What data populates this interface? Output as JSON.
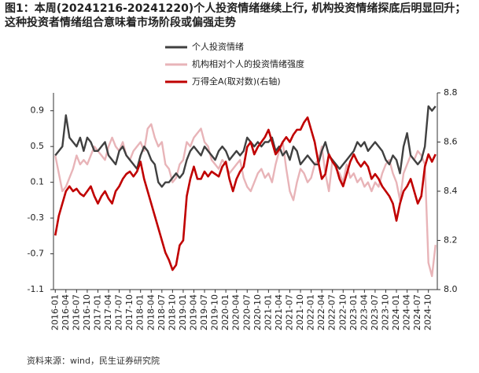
{
  "chart_data": {
    "type": "line",
    "title": "图1：本周(20241216-20241220)个人投资情绪继续上行, 机构投资情绪探底后明显回升；这种投资者情绪组合意味着市场阶段或偏强走势",
    "source": "资料来源：wind，民生证券研究院",
    "legend": "top",
    "categories": [
      "2016-01",
      null,
      null,
      "2016-04",
      null,
      null,
      "2016-07",
      null,
      null,
      "2016-10",
      null,
      null,
      "2017-01",
      null,
      null,
      "2017-04",
      null,
      null,
      "2017-07",
      null,
      null,
      "2017-10",
      null,
      null,
      "2018-01",
      null,
      null,
      "2018-04",
      null,
      null,
      "2018-07",
      null,
      null,
      "2018-10",
      null,
      null,
      "2019-01",
      null,
      null,
      "2019-04",
      null,
      null,
      "2019-07",
      null,
      null,
      "2019-10",
      null,
      null,
      "2020-01",
      null,
      null,
      "2020-04",
      null,
      null,
      "2020-07",
      null,
      null,
      "2020-10",
      null,
      null,
      "2021-01",
      null,
      null,
      "2021-04",
      null,
      null,
      "2021-07",
      null,
      null,
      "2021-10",
      null,
      null,
      "2022-01",
      null,
      null,
      "2022-04",
      null,
      null,
      "2022-07",
      null,
      null,
      "2022-10",
      null,
      null,
      "2023-01",
      null,
      null,
      "2023-04",
      null,
      null,
      "2023-07",
      null,
      null,
      "2023-10",
      null,
      null,
      "2024-01",
      null,
      null,
      "2024-04",
      null,
      null,
      "2024-07",
      null,
      null,
      "2024-10",
      null,
      null
    ],
    "ylim": [
      -1.1,
      1.1
    ],
    "yticks": [
      0.9,
      0.5,
      0.1,
      -0.3,
      -0.7,
      -1.1
    ],
    "y2lim": [
      8.0,
      8.8
    ],
    "y2ticks": [
      8.8,
      8.6,
      8.4,
      8.2,
      {
        "value": 8,
        "label": "8.0"
      }
    ],
    "series": [
      {
        "name": "个人投资情绪",
        "color": "#404040",
        "values": [
          0.4,
          0.45,
          0.5,
          0.85,
          0.6,
          0.55,
          0.5,
          0.6,
          0.45,
          0.6,
          0.55,
          0.45,
          0.45,
          0.5,
          0.55,
          0.4,
          0.35,
          0.3,
          0.45,
          0.5,
          0.4,
          0.35,
          0.3,
          0.25,
          0.4,
          0.5,
          0.45,
          0.35,
          0.3,
          0.1,
          0.05,
          0.1,
          0.1,
          0.15,
          0.2,
          0.15,
          0.2,
          0.35,
          0.45,
          0.5,
          0.45,
          0.4,
          0.5,
          0.45,
          0.4,
          0.35,
          0.45,
          0.5,
          0.45,
          0.35,
          0.4,
          0.45,
          0.4,
          0.45,
          0.6,
          0.55,
          0.5,
          0.55,
          0.5,
          0.55,
          0.55,
          0.6,
          0.45,
          0.5,
          0.4,
          0.45,
          0.35,
          0.5,
          0.45,
          0.3,
          0.35,
          0.4,
          0.35,
          0.3,
          0.3,
          0.45,
          0.55,
          0.4,
          0.35,
          0.3,
          0.25,
          0.3,
          0.35,
          0.4,
          0.45,
          0.55,
          0.5,
          0.55,
          0.45,
          0.5,
          0.55,
          0.5,
          0.45,
          0.35,
          0.3,
          0.4,
          0.35,
          0.2,
          0.5,
          0.65,
          0.4,
          0.35,
          0.3,
          0.35,
          0.5,
          0.95,
          0.9,
          0.95
        ]
      },
      {
        "name": "机构相对个人的投资情绪强度",
        "color": "#e8b4b8",
        "values": [
          0.4,
          0.2,
          0.0,
          0.05,
          0.15,
          0.25,
          0.4,
          0.3,
          0.35,
          0.3,
          0.4,
          0.5,
          0.45,
          0.4,
          0.35,
          0.5,
          0.6,
          0.5,
          0.45,
          0.55,
          0.4,
          0.35,
          0.45,
          0.5,
          0.55,
          0.45,
          0.7,
          0.75,
          0.6,
          0.5,
          0.55,
          0.3,
          0.25,
          0.1,
          0.15,
          0.3,
          0.35,
          0.55,
          0.5,
          0.6,
          0.65,
          0.7,
          0.55,
          0.5,
          0.35,
          0.3,
          0.25,
          0.35,
          0.3,
          0.2,
          0.25,
          0.3,
          0.35,
          0.15,
          0.05,
          0.0,
          0.1,
          0.2,
          0.25,
          0.15,
          0.2,
          0.1,
          0.3,
          0.45,
          0.55,
          0.25,
          0.0,
          -0.1,
          0.1,
          0.25,
          0.2,
          0.1,
          0.15,
          0.3,
          0.35,
          0.5,
          0.2,
          0.0,
          0.35,
          0.25,
          0.2,
          0.1,
          0.3,
          0.15,
          0.2,
          0.1,
          0.15,
          0.05,
          0.1,
          0.0,
          0.1,
          0.05,
          0.2,
          0.3,
          0.35,
          0.2,
          0.1,
          -0.1,
          0.2,
          0.3,
          0.4,
          0.35,
          0.45,
          0.4,
          0.3,
          -0.8,
          -0.95,
          -0.6
        ]
      },
      {
        "name": "万得全A(取对数)(右轴)",
        "color": "#c00000",
        "axis": "y2",
        "values": [
          8.22,
          8.3,
          8.35,
          8.4,
          8.42,
          8.4,
          8.41,
          8.39,
          8.38,
          8.4,
          8.42,
          8.38,
          8.35,
          8.38,
          8.4,
          8.37,
          8.35,
          8.4,
          8.42,
          8.45,
          8.47,
          8.48,
          8.46,
          8.48,
          8.52,
          8.45,
          8.4,
          8.35,
          8.3,
          8.25,
          8.2,
          8.15,
          8.12,
          8.08,
          8.1,
          8.18,
          8.2,
          8.38,
          8.45,
          8.5,
          8.45,
          8.45,
          8.48,
          8.46,
          8.48,
          8.47,
          8.46,
          8.5,
          8.52,
          8.45,
          8.4,
          8.45,
          8.48,
          8.5,
          8.58,
          8.6,
          8.55,
          8.58,
          8.6,
          8.62,
          8.65,
          8.6,
          8.55,
          8.57,
          8.6,
          8.62,
          8.6,
          8.63,
          8.65,
          8.65,
          8.68,
          8.7,
          8.65,
          8.6,
          8.52,
          8.45,
          8.47,
          8.55,
          8.52,
          8.5,
          8.45,
          8.42,
          8.47,
          8.52,
          8.55,
          8.52,
          8.5,
          8.52,
          8.5,
          8.45,
          8.47,
          8.45,
          8.42,
          8.4,
          8.38,
          8.35,
          8.28,
          8.35,
          8.4,
          8.42,
          8.45,
          8.4,
          8.35,
          8.38,
          8.5,
          8.55,
          8.52,
          8.55
        ]
      }
    ]
  }
}
